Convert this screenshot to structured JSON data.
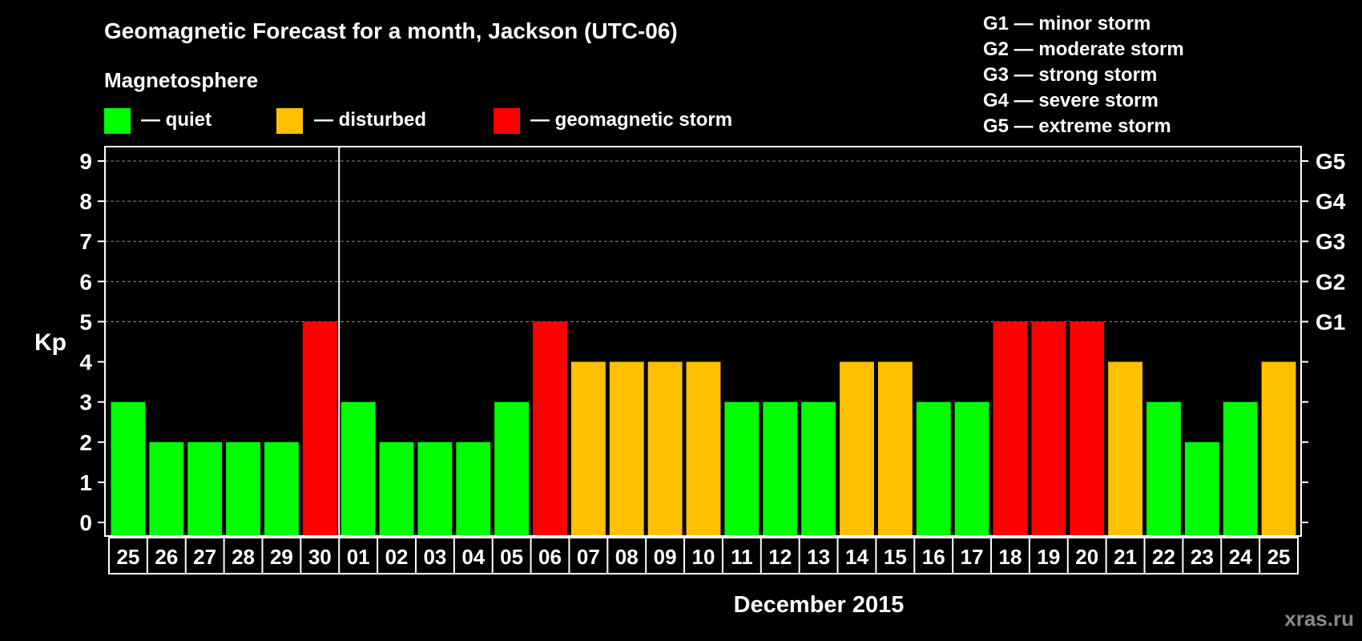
{
  "title": "Geomagnetic Forecast for a month, Jackson (UTC-06)",
  "legend": {
    "heading": "Magnetosphere",
    "items": [
      {
        "label": "— quiet",
        "color": "#00ff00"
      },
      {
        "label": "— disturbed",
        "color": "#ffc000"
      },
      {
        "label": "— geomagnetic storm",
        "color": "#ff0000"
      }
    ]
  },
  "storm_scale": [
    "G1 — minor storm",
    "G2 — moderate storm",
    "G3 — strong storm",
    "G4 — severe storm",
    "G5 — extreme storm"
  ],
  "watermark": "xras.ru",
  "chart_data": {
    "type": "bar",
    "ylabel": "Kp",
    "xlabel": "December 2015",
    "ylim": [
      0,
      9
    ],
    "y_ticks": [
      "0",
      "1",
      "2",
      "3",
      "4",
      "5",
      "6",
      "7",
      "8",
      "9"
    ],
    "right_ticks": [
      {
        "value": 5,
        "label": "G1"
      },
      {
        "value": 6,
        "label": "G2"
      },
      {
        "value": 7,
        "label": "G3"
      },
      {
        "value": 8,
        "label": "G4"
      },
      {
        "value": 9,
        "label": "G5"
      }
    ],
    "grid": "dashed at 5-9",
    "month_separator_after_index": 5,
    "categories": [
      "25",
      "26",
      "27",
      "28",
      "29",
      "30",
      "01",
      "02",
      "03",
      "04",
      "05",
      "06",
      "07",
      "08",
      "09",
      "10",
      "11",
      "12",
      "13",
      "14",
      "15",
      "16",
      "17",
      "18",
      "19",
      "20",
      "21",
      "22",
      "23",
      "24",
      "25"
    ],
    "values": [
      3,
      2,
      2,
      2,
      2,
      5,
      3,
      2,
      2,
      2,
      3,
      5,
      4,
      4,
      4,
      4,
      3,
      3,
      3,
      4,
      4,
      3,
      3,
      5,
      5,
      5,
      4,
      3,
      2,
      3,
      4
    ],
    "colors": {
      "quiet": "#00ff00",
      "disturbed": "#ffc000",
      "storm": "#ff0000"
    }
  }
}
